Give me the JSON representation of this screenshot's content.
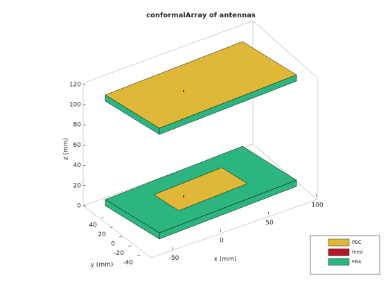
{
  "chart_data": {
    "type": "3d",
    "title": "conformalArray of antennas",
    "x_label": "x (mm)",
    "y_label": "y (mm)",
    "z_label": "z (mm)",
    "xticks": [
      -50,
      0,
      50,
      100
    ],
    "yticks": [
      -40,
      -20,
      0,
      20,
      40
    ],
    "zticks": [
      0,
      20,
      40,
      60,
      80,
      100,
      120
    ],
    "legend": [
      {
        "name": "PEC",
        "color": "#dfb83a"
      },
      {
        "name": "feed",
        "color": "#b5162c"
      },
      {
        "name": "FR4",
        "color": "#2db57f"
      }
    ]
  }
}
